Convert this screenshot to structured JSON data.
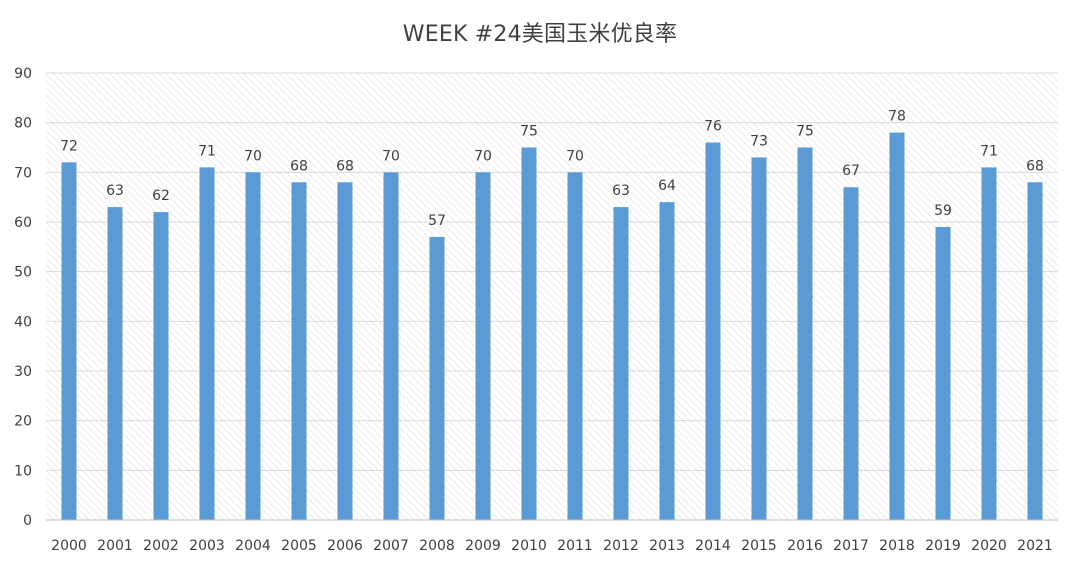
{
  "chart_data": {
    "type": "bar",
    "title": "WEEK #24美国玉米优良率",
    "categories": [
      "2000",
      "2001",
      "2002",
      "2003",
      "2004",
      "2005",
      "2006",
      "2007",
      "2008",
      "2009",
      "2010",
      "2011",
      "2012",
      "2013",
      "2014",
      "2015",
      "2016",
      "2017",
      "2018",
      "2019",
      "2020",
      "2021"
    ],
    "series": [
      {
        "values": [
          72,
          63,
          62,
          71,
          70,
          68,
          68,
          70,
          57,
          70,
          75,
          70,
          63,
          64,
          76,
          73,
          75,
          67,
          78,
          59,
          71,
          68
        ],
        "color": "#5b9bd5"
      }
    ],
    "ylim": [
      0,
      90
    ],
    "yticks": [
      0,
      10,
      20,
      30,
      40,
      50,
      60,
      70,
      80,
      90
    ],
    "xlabel": "",
    "ylabel": "",
    "grid": true,
    "legend": "none",
    "plot_background": "hatched",
    "gridline_color": "#d9d9d9",
    "text_color": "#404040"
  }
}
